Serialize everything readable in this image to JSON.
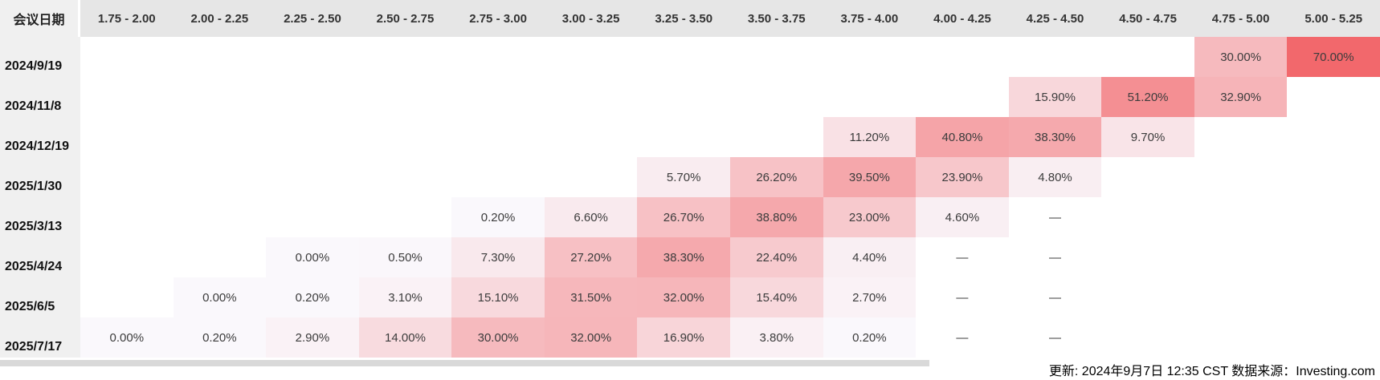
{
  "table": {
    "corner_label": "会议日期"
  },
  "chart_data": {
    "type": "heatmap",
    "title": "",
    "x_categories": [
      "1.75 - 2.00",
      "2.00 - 2.25",
      "2.25 - 2.50",
      "2.50 - 2.75",
      "2.75 - 3.00",
      "3.00 - 3.25",
      "3.25 - 3.50",
      "3.50 - 3.75",
      "3.75 - 4.00",
      "4.00 - 4.25",
      "4.25 - 4.50",
      "4.50 - 4.75",
      "4.75 - 5.00",
      "5.00 - 5.25"
    ],
    "y_categories": [
      "2024/9/19",
      "2024/11/8",
      "2024/12/19",
      "2025/1/30",
      "2025/3/13",
      "2025/4/24",
      "2025/6/5",
      "2025/7/17"
    ],
    "values": [
      [
        null,
        null,
        null,
        null,
        null,
        null,
        null,
        null,
        null,
        null,
        null,
        null,
        30,
        70
      ],
      [
        null,
        null,
        null,
        null,
        null,
        null,
        null,
        null,
        null,
        null,
        15.9,
        51.2,
        32.9,
        null
      ],
      [
        null,
        null,
        null,
        null,
        null,
        null,
        null,
        null,
        11.2,
        40.8,
        38.3,
        9.7,
        null,
        null
      ],
      [
        null,
        null,
        null,
        null,
        null,
        null,
        5.7,
        26.2,
        39.5,
        23.9,
        4.8,
        null,
        null,
        null
      ],
      [
        null,
        null,
        null,
        null,
        0.2,
        6.6,
        26.7,
        38.8,
        23,
        4.6,
        "—",
        null,
        null,
        null
      ],
      [
        null,
        null,
        0,
        0.5,
        7.3,
        27.2,
        38.3,
        22.4,
        4.4,
        "—",
        "—",
        null,
        null,
        null
      ],
      [
        null,
        0,
        0.2,
        3.1,
        15.1,
        31.5,
        32,
        15.4,
        2.7,
        "—",
        "—",
        null,
        null,
        null
      ],
      [
        0,
        0.2,
        2.9,
        14,
        30,
        32,
        16.9,
        3.8,
        0.2,
        "—",
        "—",
        null,
        null,
        null
      ]
    ],
    "value_format": "two-decimal percent",
    "empty_marker": "—",
    "color_scale": {
      "low": "#faf8fc",
      "high": "#ee2a2e",
      "domain": [
        0,
        100
      ]
    },
    "legend": "none",
    "grid": "off"
  },
  "colors": {
    "header_bg": "#e6e6e6",
    "row_label_bg": "#f0f0f0",
    "scrollbar_track": "#d9d9d9",
    "cell_text": "#3c3c3c"
  },
  "footer": {
    "text": "更新: 2024年9月7日 12:35 CST 数据来源：Investing.com"
  }
}
